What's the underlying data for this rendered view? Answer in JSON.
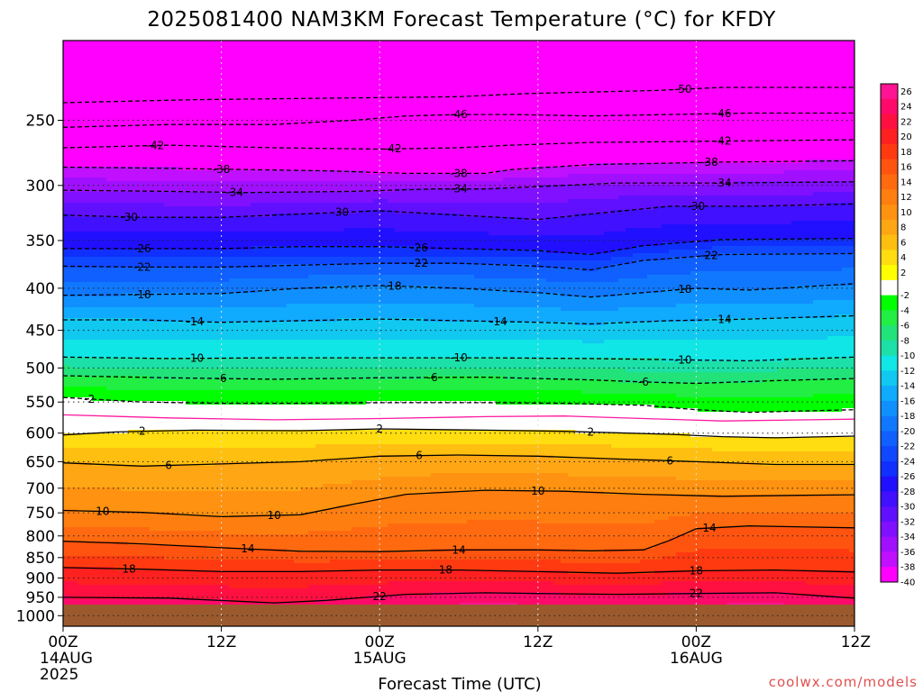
{
  "chart_data": {
    "type": "heatmap",
    "title": "2025081400 NAM3KM Forecast Temperature (°C) for KFDY",
    "xlabel": "Forecast Time (UTC)",
    "ylabel": "",
    "credit": "coolwx.com/models",
    "x_ticks": [
      {
        "hour": 0,
        "lines": [
          "00Z",
          "14AUG",
          "2025"
        ]
      },
      {
        "hour": 12,
        "lines": [
          "12Z"
        ]
      },
      {
        "hour": 24,
        "lines": [
          "00Z",
          "15AUG"
        ]
      },
      {
        "hour": 36,
        "lines": [
          "12Z"
        ]
      },
      {
        "hour": 48,
        "lines": [
          "00Z",
          "16AUG"
        ]
      },
      {
        "hour": 60,
        "lines": [
          "12Z"
        ]
      }
    ],
    "xlim": [
      0,
      60
    ],
    "y_ticks": [
      250,
      300,
      350,
      400,
      450,
      500,
      550,
      600,
      650,
      700,
      750,
      800,
      850,
      900,
      950,
      1000
    ],
    "ylim": [
      200,
      1030
    ],
    "y_scale": "log-pressure (inverted)",
    "x_grid": "dotted",
    "y_grid": "dotted",
    "colorbar": {
      "ticks": [
        26,
        24,
        22,
        20,
        18,
        16,
        14,
        12,
        10,
        8,
        6,
        4,
        2,
        -2,
        -4,
        -6,
        -8,
        -10,
        -12,
        -14,
        -16,
        -18,
        -20,
        -22,
        -24,
        -26,
        -28,
        -30,
        -32,
        -34,
        -36,
        -38,
        -40
      ],
      "colors_warm": [
        "#ff1493",
        "#ff0a6a",
        "#ff1040",
        "#ff2020",
        "#ff3a10",
        "#ff5410",
        "#ff6a10",
        "#ff7e10",
        "#ff9210",
        "#ffa614",
        "#ffbf10",
        "#ffdd10",
        "#ffff00"
      ],
      "color_zero": "#ffffff",
      "colors_cold": [
        "#00ff00",
        "#22ee44",
        "#22e27a",
        "#1ce0a8",
        "#10e6e6",
        "#10c8f0",
        "#10aaff",
        "#1090ff",
        "#1078ff",
        "#1060ff",
        "#1048ff",
        "#1030ff",
        "#2010ff",
        "#4010ff",
        "#6010ff",
        "#8010ff",
        "#a010ff",
        "#c010ff",
        "#ff00ff"
      ]
    },
    "isotherms": [
      {
        "value": -50,
        "dashed": true,
        "points": [
          [
            0,
            238
          ],
          [
            10,
            236
          ],
          [
            20,
            235
          ],
          [
            30,
            234
          ],
          [
            35,
            232
          ],
          [
            45,
            230
          ],
          [
            50,
            228
          ],
          [
            60,
            228
          ]
        ],
        "labels": [
          [
            47,
            -50
          ]
        ]
      },
      {
        "value": -46,
        "dashed": true,
        "points": [
          [
            0,
            255
          ],
          [
            8,
            253
          ],
          [
            16,
            253
          ],
          [
            22,
            250
          ],
          [
            26,
            247
          ],
          [
            30,
            246
          ],
          [
            34,
            246
          ],
          [
            40,
            247
          ],
          [
            46,
            246
          ],
          [
            52,
            245
          ],
          [
            60,
            245
          ]
        ],
        "labels": [
          [
            30,
            -46
          ],
          [
            50,
            -46
          ]
        ]
      },
      {
        "value": -42,
        "dashed": true,
        "points": [
          [
            0,
            270
          ],
          [
            8,
            268
          ],
          [
            16,
            270
          ],
          [
            24,
            271
          ],
          [
            30,
            270
          ],
          [
            34,
            268
          ],
          [
            40,
            266
          ],
          [
            50,
            265
          ],
          [
            60,
            264
          ]
        ],
        "labels": [
          [
            7,
            -42
          ],
          [
            25,
            -42
          ],
          [
            50,
            -42
          ]
        ]
      },
      {
        "value": -38,
        "dashed": true,
        "points": [
          [
            0,
            285
          ],
          [
            8,
            286
          ],
          [
            14,
            287
          ],
          [
            20,
            288
          ],
          [
            26,
            290
          ],
          [
            32,
            290
          ],
          [
            34,
            287
          ],
          [
            40,
            283
          ],
          [
            50,
            281
          ],
          [
            60,
            280
          ]
        ],
        "labels": [
          [
            12,
            -38
          ],
          [
            30,
            -38
          ],
          [
            49,
            -38
          ]
        ]
      },
      {
        "value": -34,
        "dashed": true,
        "points": [
          [
            0,
            304
          ],
          [
            8,
            305
          ],
          [
            14,
            306
          ],
          [
            22,
            305
          ],
          [
            28,
            303
          ],
          [
            32,
            303
          ],
          [
            36,
            301
          ],
          [
            42,
            298
          ],
          [
            50,
            298
          ],
          [
            60,
            297
          ]
        ],
        "labels": [
          [
            13,
            -34
          ],
          [
            30,
            -34
          ],
          [
            50,
            -34
          ]
        ]
      },
      {
        "value": -30,
        "dashed": true,
        "points": [
          [
            0,
            326
          ],
          [
            6,
            328
          ],
          [
            12,
            328
          ],
          [
            18,
            325
          ],
          [
            24,
            322
          ],
          [
            30,
            326
          ],
          [
            36,
            330
          ],
          [
            40,
            325
          ],
          [
            46,
            318
          ],
          [
            52,
            318
          ],
          [
            60,
            316
          ]
        ],
        "labels": [
          [
            5,
            -30
          ],
          [
            21,
            -30
          ],
          [
            48,
            -30
          ]
        ]
      },
      {
        "value": -26,
        "dashed": true,
        "points": [
          [
            0,
            358
          ],
          [
            6,
            358
          ],
          [
            12,
            358
          ],
          [
            18,
            356
          ],
          [
            24,
            356
          ],
          [
            30,
            358
          ],
          [
            36,
            360
          ],
          [
            40,
            364
          ],
          [
            44,
            355
          ],
          [
            50,
            349
          ],
          [
            60,
            348
          ]
        ],
        "labels": [
          [
            6,
            -26
          ],
          [
            27,
            -26
          ]
        ]
      },
      {
        "value": -22,
        "dashed": true,
        "points": [
          [
            0,
            376
          ],
          [
            6,
            377
          ],
          [
            12,
            377
          ],
          [
            18,
            375
          ],
          [
            24,
            373
          ],
          [
            30,
            373
          ],
          [
            36,
            376
          ],
          [
            40,
            380
          ],
          [
            44,
            370
          ],
          [
            50,
            364
          ],
          [
            60,
            363
          ]
        ],
        "labels": [
          [
            6,
            -22
          ],
          [
            27,
            -22
          ],
          [
            49,
            -22
          ]
        ]
      },
      {
        "value": -18,
        "dashed": true,
        "points": [
          [
            0,
            408
          ],
          [
            6,
            407
          ],
          [
            12,
            406
          ],
          [
            18,
            400
          ],
          [
            24,
            397
          ],
          [
            30,
            400
          ],
          [
            36,
            405
          ],
          [
            40,
            410
          ],
          [
            44,
            405
          ],
          [
            48,
            400
          ],
          [
            52,
            402
          ],
          [
            60,
            395
          ]
        ],
        "labels": [
          [
            6,
            -18
          ],
          [
            25,
            -18
          ],
          [
            47,
            -18
          ]
        ]
      },
      {
        "value": -14,
        "dashed": true,
        "points": [
          [
            0,
            437
          ],
          [
            6,
            437
          ],
          [
            12,
            440
          ],
          [
            18,
            438
          ],
          [
            24,
            436
          ],
          [
            30,
            438
          ],
          [
            36,
            440
          ],
          [
            40,
            442
          ],
          [
            46,
            438
          ],
          [
            52,
            436
          ],
          [
            60,
            432
          ]
        ],
        "labels": [
          [
            10,
            -14
          ],
          [
            33,
            -14
          ],
          [
            50,
            -14
          ]
        ]
      },
      {
        "value": -10,
        "dashed": true,
        "points": [
          [
            0,
            485
          ],
          [
            8,
            487
          ],
          [
            16,
            486
          ],
          [
            24,
            486
          ],
          [
            32,
            486
          ],
          [
            40,
            487
          ],
          [
            48,
            489
          ],
          [
            52,
            490
          ],
          [
            60,
            485
          ]
        ],
        "labels": [
          [
            10,
            -10
          ],
          [
            30,
            -10
          ],
          [
            47,
            -10
          ]
        ]
      },
      {
        "value": -6,
        "dashed": true,
        "points": [
          [
            0,
            511
          ],
          [
            8,
            514
          ],
          [
            16,
            516
          ],
          [
            24,
            514
          ],
          [
            32,
            513
          ],
          [
            40,
            517
          ],
          [
            44,
            520
          ],
          [
            48,
            522
          ],
          [
            54,
            518
          ],
          [
            60,
            515
          ]
        ],
        "labels": [
          [
            12,
            -6
          ],
          [
            28,
            -6
          ],
          [
            44,
            -6
          ]
        ]
      },
      {
        "value": -2,
        "dashed": true,
        "points": [
          [
            0,
            543
          ],
          [
            6,
            550
          ],
          [
            12,
            552
          ],
          [
            18,
            552
          ],
          [
            24,
            551
          ],
          [
            32,
            551
          ],
          [
            38,
            552
          ],
          [
            44,
            555
          ],
          [
            48,
            562
          ],
          [
            52,
            566
          ],
          [
            60,
            562
          ]
        ],
        "labels": [
          [
            2,
            -2
          ]
        ]
      },
      {
        "value": 2,
        "dashed": false,
        "points": [
          [
            0,
            603
          ],
          [
            4,
            598
          ],
          [
            10,
            595
          ],
          [
            18,
            596
          ],
          [
            24,
            593
          ],
          [
            32,
            595
          ],
          [
            38,
            597
          ],
          [
            46,
            602
          ],
          [
            50,
            606
          ],
          [
            54,
            608
          ],
          [
            60,
            605
          ]
        ],
        "labels": [
          [
            6,
            2
          ],
          [
            24,
            2
          ],
          [
            40,
            2
          ]
        ]
      },
      {
        "value": 2,
        "dashed": true,
        "points": [
          [
            0,
            570
          ],
          [
            8,
            575
          ],
          [
            16,
            578
          ],
          [
            24,
            576
          ],
          [
            32,
            573
          ],
          [
            38,
            572
          ],
          [
            44,
            576
          ],
          [
            50,
            580
          ],
          [
            60,
            577
          ]
        ],
        "labels": [
          [
            20,
            2
          ],
          [
            40,
            2
          ]
        ]
      },
      {
        "value": 6,
        "dashed": false,
        "points": [
          [
            0,
            652
          ],
          [
            6,
            658
          ],
          [
            12,
            654
          ],
          [
            18,
            650
          ],
          [
            24,
            640
          ],
          [
            30,
            638
          ],
          [
            36,
            640
          ],
          [
            42,
            645
          ],
          [
            48,
            650
          ],
          [
            54,
            655
          ],
          [
            60,
            655
          ]
        ],
        "labels": [
          [
            8,
            6
          ],
          [
            27,
            6
          ],
          [
            46,
            6
          ]
        ]
      },
      {
        "value": 10,
        "dashed": false,
        "points": [
          [
            0,
            745
          ],
          [
            6,
            749
          ],
          [
            12,
            758
          ],
          [
            18,
            754
          ],
          [
            22,
            732
          ],
          [
            26,
            712
          ],
          [
            32,
            704
          ],
          [
            38,
            706
          ],
          [
            44,
            712
          ],
          [
            50,
            716
          ],
          [
            56,
            714
          ],
          [
            60,
            713
          ]
        ],
        "labels": [
          [
            3,
            10
          ],
          [
            16,
            10
          ],
          [
            36,
            10
          ]
        ]
      },
      {
        "value": 14,
        "dashed": false,
        "points": [
          [
            0,
            812
          ],
          [
            6,
            818
          ],
          [
            12,
            827
          ],
          [
            18,
            835
          ],
          [
            24,
            836
          ],
          [
            30,
            832
          ],
          [
            36,
            832
          ],
          [
            40,
            834
          ],
          [
            44,
            832
          ],
          [
            46,
            810
          ],
          [
            48,
            784
          ],
          [
            52,
            778
          ],
          [
            60,
            782
          ]
        ],
        "labels": [
          [
            14,
            14
          ],
          [
            30,
            14
          ],
          [
            49,
            14
          ]
        ]
      },
      {
        "value": 18,
        "dashed": false,
        "points": [
          [
            0,
            874
          ],
          [
            6,
            878
          ],
          [
            12,
            884
          ],
          [
            18,
            884
          ],
          [
            24,
            880
          ],
          [
            30,
            880
          ],
          [
            36,
            884
          ],
          [
            42,
            888
          ],
          [
            48,
            882
          ],
          [
            54,
            880
          ],
          [
            60,
            885
          ]
        ],
        "labels": [
          [
            5,
            18
          ],
          [
            29,
            18
          ],
          [
            48,
            18
          ]
        ]
      },
      {
        "value": 22,
        "dashed": false,
        "points": [
          [
            0,
            950
          ],
          [
            8,
            952
          ],
          [
            16,
            965
          ],
          [
            20,
            958
          ],
          [
            26,
            942
          ],
          [
            32,
            938
          ],
          [
            36,
            940
          ],
          [
            42,
            942
          ],
          [
            48,
            940
          ],
          [
            54,
            938
          ],
          [
            60,
            952
          ]
        ],
        "labels": [
          [
            24,
            22
          ],
          [
            48,
            22
          ]
        ]
      }
    ]
  }
}
